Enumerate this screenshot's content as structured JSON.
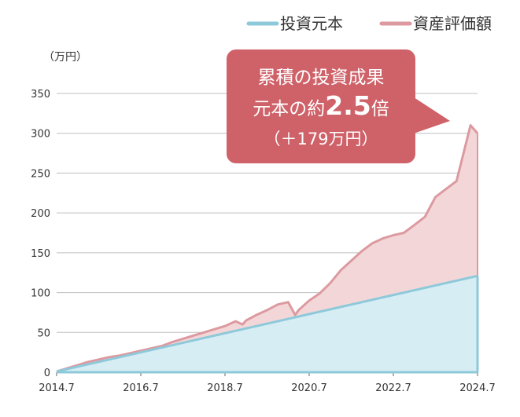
{
  "chart_data": {
    "type": "area",
    "unit_label": "（万円）",
    "ylim": [
      0,
      350
    ],
    "y_ticks": [
      0,
      50,
      100,
      150,
      200,
      250,
      300,
      350
    ],
    "x_ticks": [
      "2014.7",
      "2016.7",
      "2018.7",
      "2020.7",
      "2022.7",
      "2024.7"
    ],
    "x_range": [
      "2014.7",
      "2024.7"
    ],
    "grid": true,
    "legend_position": "top-right",
    "colors": {
      "principal_line": "#8ec9da",
      "principal_fill": "#d7edf4",
      "valuation_line": "#dc9aa0",
      "valuation_fill": "#f3d7d8",
      "callout_bg": "#cf6168",
      "grid": "#bfbfbf",
      "axis": "#8ec9da"
    },
    "series": [
      {
        "name": "投資元本",
        "color": "#8ec9da",
        "x": [
          "2014.7",
          "2024.7"
        ],
        "values": [
          1,
          121
        ]
      },
      {
        "name": "資産評価額",
        "color": "#dc9aa0",
        "x": [
          "2014.7",
          "2014.10",
          "2015.1",
          "2015.4",
          "2015.7",
          "2015.10",
          "2016.1",
          "2016.4",
          "2016.7",
          "2016.10",
          "2017.1",
          "2017.4",
          "2017.7",
          "2017.10",
          "2018.1",
          "2018.4",
          "2018.7",
          "2018.10",
          "2018.12",
          "2019.1",
          "2019.4",
          "2019.7",
          "2019.10",
          "2020.1",
          "2020.3",
          "2020.4",
          "2020.7",
          "2020.10",
          "2021.1",
          "2021.4",
          "2021.7",
          "2021.10",
          "2022.1",
          "2022.4",
          "2022.7",
          "2022.10",
          "2023.1",
          "2023.4",
          "2023.7",
          "2023.10",
          "2024.1",
          "2024.3",
          "2024.5",
          "2024.7"
        ],
        "values": [
          1,
          5,
          9,
          13,
          16,
          19,
          21,
          24,
          27,
          30,
          33,
          38,
          42,
          46,
          50,
          54,
          58,
          64,
          60,
          65,
          72,
          78,
          85,
          88,
          72,
          78,
          90,
          99,
          112,
          128,
          140,
          152,
          162,
          168,
          172,
          175,
          185,
          195,
          220,
          230,
          240,
          275,
          310,
          300
        ]
      }
    ],
    "annotation": {
      "line1": "累積の投資成果",
      "line2_prefix": "元本の約",
      "line2_value": "2.5",
      "line2_suffix": "倍",
      "line3": "（＋179万円）"
    }
  }
}
